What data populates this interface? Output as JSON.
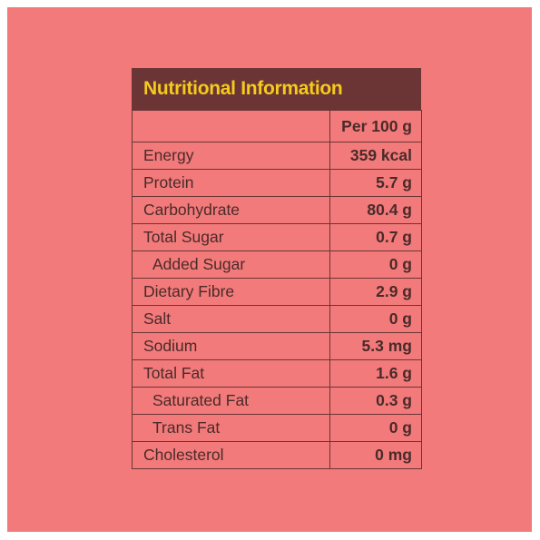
{
  "panel": {
    "title": "Nutritional Information",
    "column_header": "Per 100 g",
    "rows": [
      {
        "nutrient": "Energy",
        "value": "359 kcal",
        "indent": false
      },
      {
        "nutrient": "Protein",
        "value": "5.7 g",
        "indent": false
      },
      {
        "nutrient": "Carbohydrate",
        "value": "80.4 g",
        "indent": false
      },
      {
        "nutrient": "Total Sugar",
        "value": "0.7 g",
        "indent": false
      },
      {
        "nutrient": "Added Sugar",
        "value": "0 g",
        "indent": true
      },
      {
        "nutrient": "Dietary Fibre",
        "value": "2.9 g",
        "indent": false
      },
      {
        "nutrient": "Salt",
        "value": "0 g",
        "indent": false
      },
      {
        "nutrient": "Sodium",
        "value": "5.3 mg",
        "indent": false
      },
      {
        "nutrient": "Total Fat",
        "value": "1.6 g",
        "indent": false
      },
      {
        "nutrient": "Saturated Fat",
        "value": "0.3 g",
        "indent": true
      },
      {
        "nutrient": "Trans Fat",
        "value": "0 g",
        "indent": true
      },
      {
        "nutrient": "Cholesterol",
        "value": "0 mg",
        "indent": false
      }
    ]
  },
  "colors": {
    "background": "#f27a7a",
    "header_bg": "#6b3535",
    "title_text": "#f5cb1c",
    "border": "#6b3535"
  }
}
